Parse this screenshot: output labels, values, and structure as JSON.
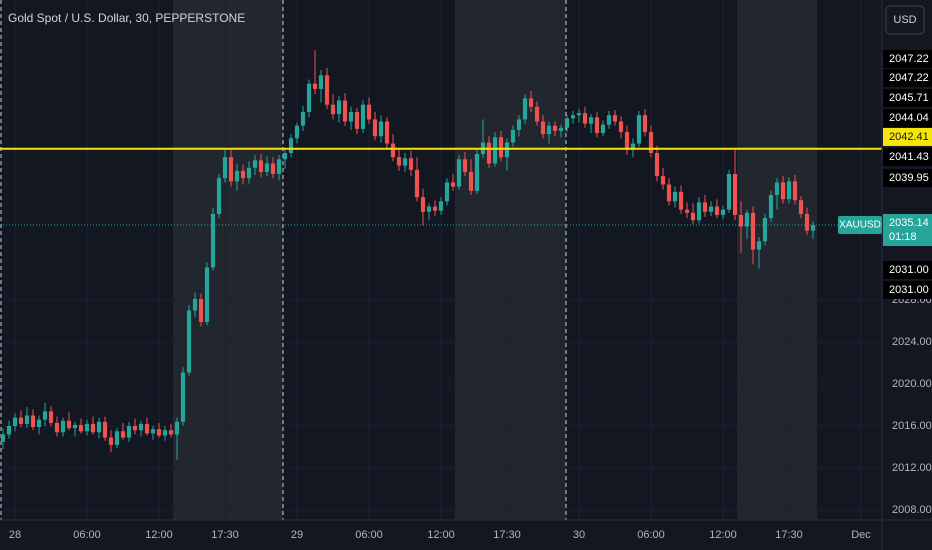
{
  "chart_data": {
    "type": "candlestick",
    "title": "Gold Spot / U.S. Dollar, 30, PEPPERSTONE",
    "currency_button": "USD",
    "up_color": "#26a69a",
    "down_color": "#ef5350",
    "ylim": [
      2007.05,
      2056.57
    ],
    "yticks": [
      {
        "value": 2008,
        "label": "2008.00"
      },
      {
        "value": 2012,
        "label": "2012.00"
      },
      {
        "value": 2016,
        "label": "2016.00"
      },
      {
        "value": 2020,
        "label": "2020.00"
      },
      {
        "value": 2024,
        "label": "2024.00"
      },
      {
        "value": 2028,
        "label": "2028.00"
      }
    ],
    "xlim": [
      -0.5,
      146.5
    ],
    "xticks": [
      {
        "value": 2,
        "label": "28"
      },
      {
        "value": 14,
        "label": "06:00"
      },
      {
        "value": 26,
        "label": "12:00"
      },
      {
        "value": 37,
        "label": "17:30"
      },
      {
        "value": 49,
        "label": "29"
      },
      {
        "value": 61,
        "label": "06:00"
      },
      {
        "value": 73,
        "label": "12:00"
      },
      {
        "value": 84,
        "label": "17:30"
      },
      {
        "value": 96,
        "label": "30"
      },
      {
        "value": 108,
        "label": "06:00"
      },
      {
        "value": 120,
        "label": "12:00"
      },
      {
        "value": 131,
        "label": "17:30"
      },
      {
        "value": 143,
        "label": "Dec"
      }
    ],
    "horizontal_line": {
      "value": 2042.41,
      "color": "#f5e50a"
    },
    "current_price": {
      "symbol": "XAUUSD",
      "value": 2035.14,
      "countdown": "01:18"
    },
    "price_tags": [
      {
        "value": 2047.22,
        "label": "2047.22"
      },
      {
        "value": 2047.22,
        "label": "2047.22"
      },
      {
        "value": 2045.71,
        "label": "2045.71"
      },
      {
        "value": 2044.04,
        "label": "2044.04"
      },
      {
        "value": 2042.41,
        "label": "2042.41"
      },
      {
        "value": 2041.43,
        "label": "2041.43"
      },
      {
        "value": 2039.95,
        "label": "2039.95"
      },
      {
        "value": 2031,
        "label": "2031.00"
      },
      {
        "value": 2031,
        "label": "2031.00"
      }
    ],
    "candles": [
      [
        2014.5,
        2015.8,
        2013.8,
        2015.2
      ],
      [
        2015.2,
        2016.5,
        2014.8,
        2016.0
      ],
      [
        2016.0,
        2017.2,
        2015.5,
        2016.8
      ],
      [
        2016.8,
        2017.5,
        2015.9,
        2016.2
      ],
      [
        2016.2,
        2017.8,
        2015.8,
        2017.0
      ],
      [
        2017.0,
        2017.6,
        2015.6,
        2015.9
      ],
      [
        2015.9,
        2017.0,
        2015.2,
        2016.6
      ],
      [
        2016.6,
        2018.2,
        2016.0,
        2017.4
      ],
      [
        2017.4,
        2017.9,
        2016.0,
        2016.3
      ],
      [
        2016.3,
        2016.9,
        2015.0,
        2015.4
      ],
      [
        2015.4,
        2016.8,
        2015.0,
        2016.5
      ],
      [
        2016.5,
        2017.3,
        2015.6,
        2015.8
      ],
      [
        2015.8,
        2016.4,
        2015.0,
        2016.1
      ],
      [
        2016.1,
        2016.7,
        2015.3,
        2015.5
      ],
      [
        2015.5,
        2016.6,
        2015.1,
        2016.2
      ],
      [
        2016.2,
        2016.9,
        2015.2,
        2015.4
      ],
      [
        2015.4,
        2016.8,
        2014.8,
        2016.4
      ],
      [
        2016.4,
        2016.9,
        2014.6,
        2014.9
      ],
      [
        2014.9,
        2015.6,
        2013.5,
        2014.2
      ],
      [
        2014.2,
        2015.8,
        2013.9,
        2015.5
      ],
      [
        2015.5,
        2016.3,
        2014.7,
        2014.9
      ],
      [
        2014.9,
        2016.4,
        2014.5,
        2016.0
      ],
      [
        2016.0,
        2016.7,
        2015.2,
        2015.6
      ],
      [
        2015.6,
        2016.5,
        2015.0,
        2016.2
      ],
      [
        2016.2,
        2016.8,
        2015.1,
        2015.3
      ],
      [
        2015.3,
        2016.0,
        2014.7,
        2015.7
      ],
      [
        2015.7,
        2016.3,
        2014.9,
        2015.1
      ],
      [
        2015.1,
        2016.0,
        2014.6,
        2015.6
      ],
      [
        2015.6,
        2016.2,
        2014.9,
        2015.2
      ],
      [
        2015.2,
        2016.8,
        2012.8,
        2016.4
      ],
      [
        2016.4,
        2021.6,
        2016.0,
        2021.1
      ],
      [
        2021.1,
        2027.5,
        2020.8,
        2027.0
      ],
      [
        2027.0,
        2028.7,
        2026.4,
        2028.1
      ],
      [
        2028.1,
        2028.6,
        2025.5,
        2025.9
      ],
      [
        2025.9,
        2031.6,
        2025.6,
        2031.1
      ],
      [
        2031.1,
        2036.8,
        2030.8,
        2036.2
      ],
      [
        2036.2,
        2040.0,
        2035.8,
        2039.6
      ],
      [
        2039.6,
        2042.4,
        2039.2,
        2041.6
      ],
      [
        2041.6,
        2042.3,
        2038.8,
        2039.3
      ],
      [
        2039.3,
        2041.0,
        2038.4,
        2040.3
      ],
      [
        2040.3,
        2040.9,
        2039.0,
        2039.6
      ],
      [
        2039.6,
        2041.2,
        2039.1,
        2040.6
      ],
      [
        2040.6,
        2041.8,
        2039.9,
        2041.3
      ],
      [
        2041.3,
        2041.9,
        2039.7,
        2040.2
      ],
      [
        2040.2,
        2041.7,
        2039.8,
        2041.0
      ],
      [
        2041.0,
        2041.6,
        2039.6,
        2040.0
      ],
      [
        2040.0,
        2041.8,
        2039.4,
        2041.4
      ],
      [
        2041.4,
        2042.4,
        2040.5,
        2042.0
      ],
      [
        2042.0,
        2043.8,
        2041.6,
        2043.4
      ],
      [
        2043.4,
        2044.9,
        2042.9,
        2044.6
      ],
      [
        2044.6,
        2046.5,
        2044.1,
        2045.9
      ],
      [
        2045.9,
        2049.0,
        2045.4,
        2048.6
      ],
      [
        2048.6,
        2051.8,
        2047.6,
        2048.1
      ],
      [
        2048.1,
        2049.9,
        2046.8,
        2049.4
      ],
      [
        2049.4,
        2050.1,
        2046.2,
        2046.6
      ],
      [
        2046.6,
        2047.6,
        2045.2,
        2045.7
      ],
      [
        2045.7,
        2047.4,
        2044.9,
        2047.0
      ],
      [
        2047.0,
        2047.7,
        2044.6,
        2045.0
      ],
      [
        2045.0,
        2046.4,
        2044.2,
        2045.9
      ],
      [
        2045.9,
        2046.3,
        2043.8,
        2044.3
      ],
      [
        2044.3,
        2047.0,
        2043.9,
        2046.6
      ],
      [
        2046.6,
        2047.3,
        2044.8,
        2045.2
      ],
      [
        2045.2,
        2045.9,
        2043.2,
        2043.6
      ],
      [
        2043.6,
        2045.6,
        2043.0,
        2045.0
      ],
      [
        2045.0,
        2045.4,
        2042.5,
        2042.9
      ],
      [
        2042.9,
        2043.8,
        2041.2,
        2041.6
      ],
      [
        2041.6,
        2042.4,
        2040.3,
        2040.8
      ],
      [
        2040.8,
        2042.0,
        2040.2,
        2041.5
      ],
      [
        2041.5,
        2042.2,
        2039.8,
        2040.4
      ],
      [
        2040.4,
        2041.6,
        2037.4,
        2037.8
      ],
      [
        2037.8,
        2038.6,
        2035.1,
        2036.4
      ],
      [
        2036.4,
        2037.2,
        2035.6,
        2036.9
      ],
      [
        2036.9,
        2037.5,
        2036.0,
        2036.5
      ],
      [
        2036.5,
        2037.8,
        2036.1,
        2037.4
      ],
      [
        2037.4,
        2039.6,
        2037.0,
        2039.2
      ],
      [
        2039.2,
        2040.0,
        2038.4,
        2038.8
      ],
      [
        2038.8,
        2041.8,
        2038.5,
        2041.4
      ],
      [
        2041.4,
        2042.1,
        2039.8,
        2040.2
      ],
      [
        2040.2,
        2041.4,
        2038.0,
        2038.4
      ],
      [
        2038.4,
        2042.4,
        2038.1,
        2041.9
      ],
      [
        2041.9,
        2045.2,
        2041.5,
        2043.0
      ],
      [
        2043.0,
        2043.6,
        2040.6,
        2041.0
      ],
      [
        2041.0,
        2044.0,
        2040.7,
        2043.5
      ],
      [
        2043.5,
        2044.1,
        2041.2,
        2041.6
      ],
      [
        2041.6,
        2043.4,
        2040.3,
        2043.0
      ],
      [
        2043.0,
        2044.6,
        2042.6,
        2044.2
      ],
      [
        2044.2,
        2045.6,
        2043.6,
        2045.2
      ],
      [
        2045.2,
        2047.6,
        2044.8,
        2047.2
      ],
      [
        2047.2,
        2047.9,
        2045.9,
        2046.4
      ],
      [
        2046.4,
        2046.9,
        2044.6,
        2045.0
      ],
      [
        2045.0,
        2045.6,
        2043.4,
        2043.8
      ],
      [
        2043.8,
        2045.0,
        2042.9,
        2044.6
      ],
      [
        2044.6,
        2045.0,
        2043.6,
        2044.1
      ],
      [
        2044.1,
        2044.7,
        2043.5,
        2044.4
      ],
      [
        2044.4,
        2045.6,
        2044.0,
        2045.3
      ],
      [
        2045.3,
        2046.0,
        2044.8,
        2045.6
      ],
      [
        2045.6,
        2046.2,
        2044.9,
        2045.8
      ],
      [
        2045.8,
        2046.4,
        2044.4,
        2044.8
      ],
      [
        2044.8,
        2045.7,
        2043.9,
        2045.4
      ],
      [
        2045.4,
        2045.9,
        2043.5,
        2043.9
      ],
      [
        2043.9,
        2045.1,
        2043.6,
        2044.7
      ],
      [
        2044.7,
        2046.0,
        2044.3,
        2045.6
      ],
      [
        2045.6,
        2046.1,
        2044.6,
        2045.0
      ],
      [
        2045.0,
        2045.5,
        2043.4,
        2044.0
      ],
      [
        2044.0,
        2044.6,
        2041.8,
        2042.3
      ],
      [
        2042.3,
        2043.4,
        2041.6,
        2042.9
      ],
      [
        2042.9,
        2046.0,
        2042.6,
        2045.6
      ],
      [
        2045.6,
        2046.2,
        2043.6,
        2044.0
      ],
      [
        2044.0,
        2044.6,
        2041.6,
        2042.0
      ],
      [
        2042.0,
        2042.7,
        2039.3,
        2039.8
      ],
      [
        2039.8,
        2040.6,
        2038.5,
        2039.0
      ],
      [
        2039.0,
        2039.6,
        2037.0,
        2037.4
      ],
      [
        2037.4,
        2038.8,
        2036.8,
        2038.3
      ],
      [
        2038.3,
        2038.9,
        2036.2,
        2036.6
      ],
      [
        2036.6,
        2037.3,
        2035.8,
        2036.3
      ],
      [
        2036.3,
        2037.2,
        2035.2,
        2035.6
      ],
      [
        2035.6,
        2037.8,
        2035.3,
        2037.3
      ],
      [
        2037.3,
        2038.0,
        2035.9,
        2036.4
      ],
      [
        2036.4,
        2037.4,
        2036.0,
        2036.9
      ],
      [
        2036.9,
        2037.6,
        2035.8,
        2036.1
      ],
      [
        2036.1,
        2037.0,
        2035.7,
        2036.6
      ],
      [
        2036.6,
        2040.4,
        2036.3,
        2040.0
      ],
      [
        2040.0,
        2042.3,
        2035.6,
        2036.1
      ],
      [
        2036.1,
        2037.4,
        2032.5,
        2035.0
      ],
      [
        2035.0,
        2036.6,
        2033.8,
        2036.3
      ],
      [
        2036.3,
        2036.9,
        2031.4,
        2032.8
      ],
      [
        2032.8,
        2034.0,
        2031.0,
        2033.6
      ],
      [
        2033.6,
        2036.2,
        2033.2,
        2035.8
      ],
      [
        2035.8,
        2038.4,
        2035.4,
        2038.0
      ],
      [
        2038.0,
        2039.6,
        2036.6,
        2039.2
      ],
      [
        2039.2,
        2039.8,
        2037.2,
        2037.6
      ],
      [
        2037.6,
        2039.7,
        2037.2,
        2039.3
      ],
      [
        2039.3,
        2039.9,
        2037.1,
        2037.5
      ],
      [
        2037.5,
        2037.9,
        2035.8,
        2036.2
      ],
      [
        2036.2,
        2036.8,
        2034.2,
        2034.6
      ],
      [
        2034.6,
        2035.5,
        2033.8,
        2035.14
      ]
    ]
  }
}
